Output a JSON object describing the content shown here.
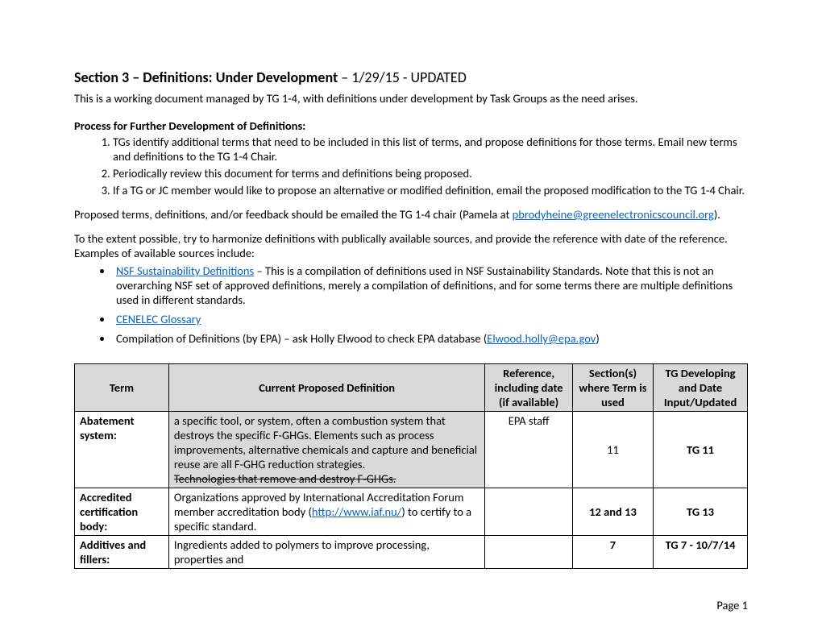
{
  "title": {
    "bold": "Section 3 – Definitions: Under Development",
    "rest": " – 1/29/15 - UPDATED"
  },
  "intro": "This is a working document managed by TG 1-4, with definitions under development by Task Groups as the need arises.",
  "process_heading": "Process for Further Development of Definitions:",
  "process_list": {
    "item1": "TGs identify additional terms that need to be included in this list of terms, and propose definitions for those terms.   Email new terms and definitions to the TG 1-4 Chair.",
    "item2": "Periodically review this document for terms and definitions being proposed.",
    "item3": "If a TG or JC member would like to propose an alternative or modified definition, email the proposed modification to the TG 1-4 Chair."
  },
  "proposed": {
    "prefix": "Proposed terms, definitions, and/or feedback should be emailed the TG 1-4 chair (Pamela at ",
    "email": "pbrodyheine@greenelectronicscouncil.org",
    "suffix": ")."
  },
  "harmonize": "To the extent possible, try to harmonize definitions with publically available sources, and provide the reference with date of the reference.  Examples of available sources include:",
  "sources": {
    "nsf_link": "NSF Sustainability Definitions",
    "nsf_rest": " – This is a compilation of definitions used in NSF Sustainability Standards.  Note that this is not an overarching NSF set of approved  definitions, merely a compilation of definitions, and for some terms there are multiple definitions used in different standards.",
    "cenelec_link": "CENELEC Glossary",
    "epa_prefix": "Compilation of Definitions (by EPA) – ask Holly Elwood to check EPA database (",
    "epa_email": "Elwood.holly@epa.gov",
    "epa_suffix": ")"
  },
  "table": {
    "headers": {
      "term": "Term",
      "def": "Current Proposed Definition",
      "ref": "Reference, including date (if available)",
      "section": "Section(s) where Term is used",
      "tg": "TG Developing and Date Input/Updated"
    },
    "row1": {
      "term": "Abatement system:",
      "def_main": "a specific tool, or system, often a combustion system that destroys the specific F-GHGs. Elements such as process improvements, alternative chemicals and capture and beneficial reuse are all F-GHG reduction strategies.",
      "def_strike": "Technologies that remove and destroy F-GHGs.",
      "ref": "EPA staff",
      "section": "11",
      "tg": "TG 11"
    },
    "row2": {
      "term": "Accredited certification body:",
      "def_prefix": "Organizations approved by International Accreditation Forum member accreditation body (",
      "def_link": "http://www.iaf.nu/",
      "def_suffix": ") to certify to a specific standard.",
      "ref": "",
      "section": "12 and 13",
      "tg": "TG 13"
    },
    "row3": {
      "term": "Additives and fillers:",
      "def": "Ingredients added to polymers to improve processing, properties and",
      "ref": "",
      "section": "7",
      "tg": "TG 7  - 10/7/14"
    }
  },
  "footer": "Page 1"
}
